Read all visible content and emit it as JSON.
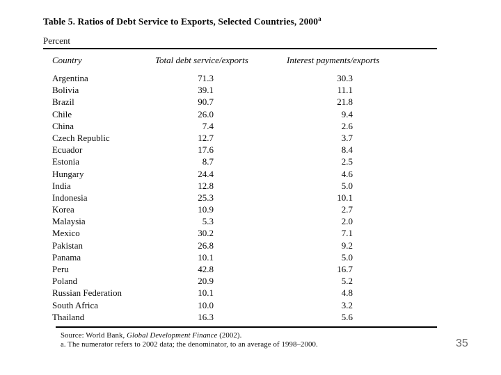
{
  "table": {
    "title": "Table 5. Ratios of Debt Service to Exports, Selected Countries, 2000",
    "title_superscript": "a",
    "unit_label": "Percent",
    "columns": [
      "Country",
      "Total debt service/exports",
      "Interest payments/exports"
    ],
    "rows": [
      [
        "Argentina",
        "71.3",
        "30.3"
      ],
      [
        "Bolivia",
        "39.1",
        "11.1"
      ],
      [
        "Brazil",
        "90.7",
        "21.8"
      ],
      [
        "Chile",
        "26.0",
        "9.4"
      ],
      [
        "China",
        "7.4",
        "2.6"
      ],
      [
        "Czech Republic",
        "12.7",
        "3.7"
      ],
      [
        "Ecuador",
        "17.6",
        "8.4"
      ],
      [
        "Estonia",
        "8.7",
        "2.5"
      ],
      [
        "Hungary",
        "24.4",
        "4.6"
      ],
      [
        "India",
        "12.8",
        "5.0"
      ],
      [
        "Indonesia",
        "25.3",
        "10.1"
      ],
      [
        "Korea",
        "10.9",
        "2.7"
      ],
      [
        "Malaysia",
        "5.3",
        "2.0"
      ],
      [
        "Mexico",
        "30.2",
        "7.1"
      ],
      [
        "Pakistan",
        "26.8",
        "9.2"
      ],
      [
        "Panama",
        "10.1",
        "5.0"
      ],
      [
        "Peru",
        "42.8",
        "16.7"
      ],
      [
        "Poland",
        "20.9",
        "5.2"
      ],
      [
        "Russian Federation",
        "10.1",
        "4.8"
      ],
      [
        "South Africa",
        "10.0",
        "3.2"
      ],
      [
        "Thailand",
        "16.3",
        "5.6"
      ]
    ]
  },
  "footer": {
    "source_prefix": "Source: World Bank, ",
    "source_book_title": "Global Development Finance",
    "source_suffix": " (2002).",
    "footnote": "a. The numerator refers to 2002 data; the denominator, to an average of 1998–2000."
  },
  "page": {
    "page_number": "35"
  }
}
